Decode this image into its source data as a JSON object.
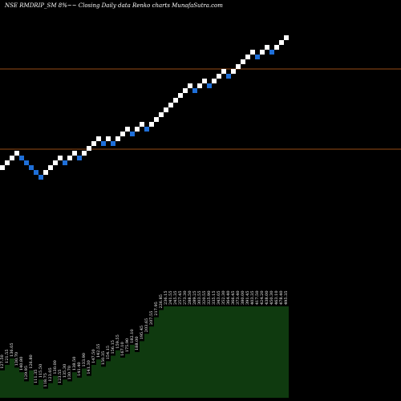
{
  "chart_data": {
    "type": "renko",
    "title": "NSE RMDRIP_SM 8%~~ Closing Daily data Renko charts MunafaSutra.com",
    "colors": {
      "background": "#000000",
      "up_brick": "#ffffff",
      "down_brick": "#1e6fd9",
      "reference_line": "#c8641e",
      "volume_fill": "#0f3a0f",
      "text": "#ffffff"
    },
    "bricks": [
      "up",
      "up",
      "up",
      "up",
      "down",
      "down",
      "down",
      "down",
      "down",
      "up",
      "up",
      "up",
      "up",
      "down",
      "up",
      "up",
      "down",
      "up",
      "up",
      "up",
      "up",
      "down",
      "up",
      "down",
      "up",
      "up",
      "up",
      "down",
      "up",
      "up",
      "down",
      "up",
      "up",
      "up",
      "up",
      "up",
      "up",
      "up",
      "up",
      "up",
      "down",
      "up",
      "up",
      "down",
      "up",
      "up",
      "up",
      "down",
      "up",
      "up",
      "up",
      "up",
      "up",
      "down",
      "up",
      "up",
      "down",
      "up",
      "up",
      "up"
    ],
    "brick_levels": [
      16,
      18,
      20,
      22,
      20,
      18,
      16,
      14,
      12,
      14,
      16,
      18,
      20,
      18,
      20,
      22,
      20,
      22,
      24,
      26,
      28,
      26,
      28,
      26,
      28,
      30,
      32,
      30,
      32,
      34,
      32,
      34,
      36,
      38,
      40,
      42,
      44,
      46,
      48,
      50,
      48,
      50,
      52,
      50,
      52,
      54,
      56,
      54,
      56,
      58,
      60,
      62,
      64,
      62,
      64,
      66,
      64,
      66,
      68,
      70
    ],
    "volume_labels": [
      "127.50",
      "121.55",
      "136.05",
      "130.70",
      "140.80",
      "129.95",
      "126.80",
      "111.35",
      "115.50",
      "118.75",
      "123.05",
      "130.00",
      "123.55",
      "135.30",
      "130.70",
      "138.50",
      "141.40",
      "133.90",
      "141.30",
      "147.50",
      "142.55",
      "150.35",
      "154.15",
      "156.15",
      "159.55",
      "167.10",
      "175.90",
      "182.10",
      "188.00",
      "195.45",
      "203.65",
      "207.55",
      "217.95",
      "226.85",
      "236.15",
      "241.55",
      "245.35",
      "257.45",
      "273.30",
      "288.50",
      "289.25",
      "303.55",
      "320.55",
      "325.90",
      "335.15",
      "343.05",
      "352.30",
      "364.40",
      "366.45",
      "373.40",
      "380.00",
      "391.45",
      "403.35",
      "417.50",
      "424.20",
      "438.00",
      "450.30",
      "463.10",
      "478.40",
      "495.35"
    ],
    "volume_heights": [
      0.3,
      0.36,
      0.43,
      0.33,
      0.28,
      0.18,
      0.3,
      0.14,
      0.2,
      0.1,
      0.16,
      0.24,
      0.14,
      0.2,
      0.18,
      0.28,
      0.22,
      0.32,
      0.24,
      0.36,
      0.42,
      0.34,
      0.4,
      0.46,
      0.52,
      0.44,
      0.48,
      0.58,
      0.5,
      0.62,
      0.7,
      0.78,
      0.88,
      0.96,
      1.0,
      1.0,
      1.0,
      1.0,
      1.0,
      1.0,
      1.0,
      1.0,
      1.0,
      1.0,
      1.0,
      1.0,
      1.0,
      1.0,
      1.0,
      1.0,
      1.0,
      1.0,
      1.0,
      1.0,
      1.0,
      1.0,
      1.0,
      1.0,
      1.0,
      1.0
    ]
  }
}
